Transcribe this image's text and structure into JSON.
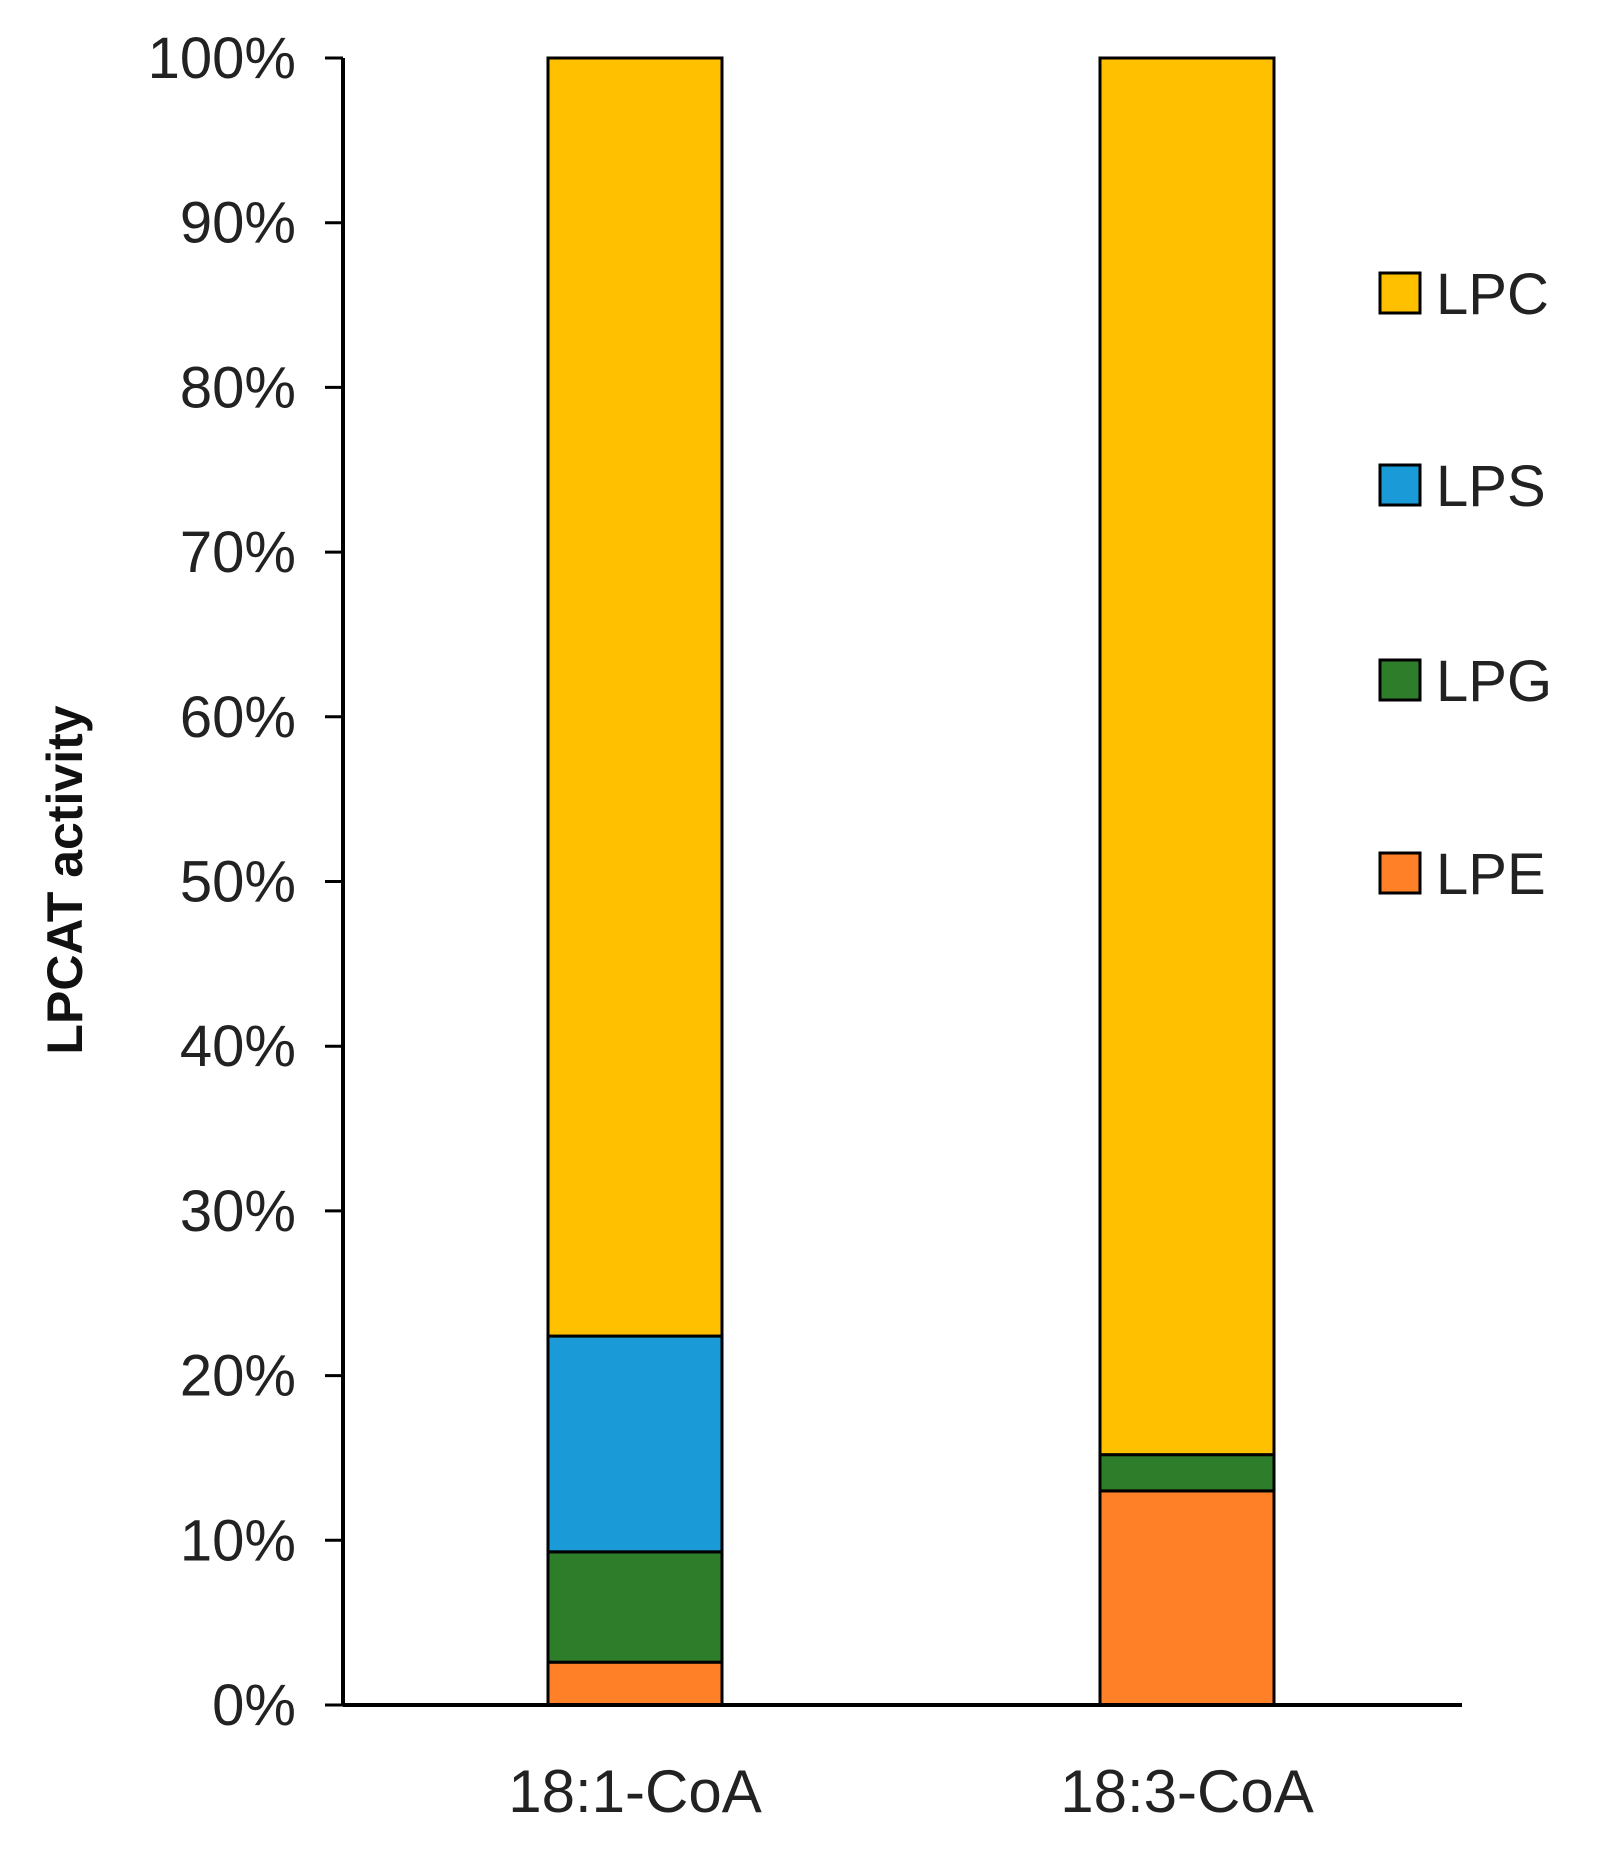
{
  "chart_data": {
    "type": "bar",
    "stacked": true,
    "ylabel": "LPCAT activity",
    "xlabel": "",
    "ylim": [
      0,
      100
    ],
    "yticks": [
      "0%",
      "10%",
      "20%",
      "30%",
      "40%",
      "50%",
      "60%",
      "70%",
      "80%",
      "90%",
      "100%"
    ],
    "categories": [
      "18:1-CoA",
      "18:3-CoA"
    ],
    "series": [
      {
        "name": "LPE",
        "color": "#FF8026",
        "values": [
          2.6,
          13.0
        ]
      },
      {
        "name": "LPG",
        "color": "#2E7D2A",
        "values": [
          6.7,
          2.2
        ]
      },
      {
        "name": "LPS",
        "color": "#1A9BD7",
        "values": [
          13.1,
          0.0
        ]
      },
      {
        "name": "LPC",
        "color": "#FFC000",
        "values": [
          77.6,
          84.8
        ]
      }
    ],
    "legend_order": [
      "LPC",
      "LPS",
      "LPG",
      "LPE"
    ],
    "legend_position": "right",
    "grid": false
  }
}
